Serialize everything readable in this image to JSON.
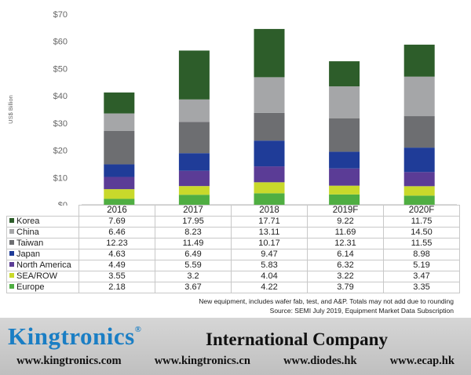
{
  "chart_data": {
    "type": "bar",
    "stacked": true,
    "categories": [
      "2016",
      "2017",
      "2018",
      "2019F",
      "2020F"
    ],
    "ylabel": "US$ Billion",
    "ylim": [
      0,
      70
    ],
    "yticks": [
      "$0",
      "$10",
      "$20",
      "$30",
      "$40",
      "$50",
      "$60",
      "$70"
    ],
    "series": [
      {
        "name": "Europe",
        "color": "#4fae42",
        "values": [
          2.18,
          3.67,
          4.22,
          3.79,
          3.35
        ],
        "labels": [
          "2.18",
          "3.67",
          "4.22",
          "3.79",
          "3.35"
        ]
      },
      {
        "name": "SEA/ROW",
        "color": "#c9d92b",
        "values": [
          3.55,
          3.2,
          4.04,
          3.22,
          3.47
        ],
        "labels": [
          "3.55",
          "3.2",
          "4.04",
          "3.22",
          "3.47"
        ]
      },
      {
        "name": "North America",
        "color": "#5b3c96",
        "values": [
          4.49,
          5.59,
          5.83,
          6.32,
          5.19
        ],
        "labels": [
          "4.49",
          "5.59",
          "5.83",
          "6.32",
          "5.19"
        ]
      },
      {
        "name": "Japan",
        "color": "#1f3c98",
        "values": [
          4.63,
          6.49,
          9.47,
          6.14,
          8.98
        ],
        "labels": [
          "4.63",
          "6.49",
          "9.47",
          "6.14",
          "8.98"
        ]
      },
      {
        "name": "Taiwan",
        "color": "#6d6e71",
        "values": [
          12.23,
          11.49,
          10.17,
          12.31,
          11.55
        ],
        "labels": [
          "12.23",
          "11.49",
          "10.17",
          "12.31",
          "11.55"
        ]
      },
      {
        "name": "China",
        "color": "#a5a6a8",
        "values": [
          6.46,
          8.23,
          13.11,
          11.69,
          14.5
        ],
        "labels": [
          "6.46",
          "8.23",
          "13.11",
          "11.69",
          "14.50"
        ]
      },
      {
        "name": "Korea",
        "color": "#2d5d2a",
        "values": [
          7.69,
          17.95,
          17.71,
          9.22,
          11.75
        ],
        "labels": [
          "7.69",
          "17.95",
          "17.71",
          "9.22",
          "11.75"
        ]
      }
    ],
    "table_order": [
      "Korea",
      "China",
      "Taiwan",
      "Japan",
      "North America",
      "SEA/ROW",
      "Europe"
    ],
    "note": "New equipment, includes wafer fab, test, and A&P. Totals may not add due to rounding",
    "source": "Source: SEMI July 2019, Equipment Market Data Subscription"
  },
  "footer": {
    "brand": "Kingtronics",
    "registered": "®",
    "company": "International Company",
    "urls": [
      "www.kingtronics.com",
      "www.kingtronics.cn",
      "www.diodes.hk",
      "www.ecap.hk"
    ]
  }
}
